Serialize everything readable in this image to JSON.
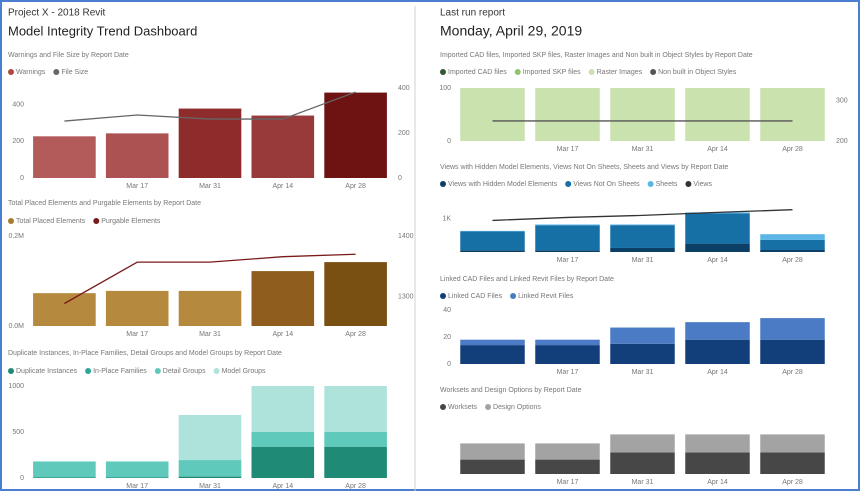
{
  "header": {
    "project": "Project X - 2018 Revit",
    "title": "Model Integrity Trend Dashboard",
    "last_run_label": "Last run report",
    "last_run_date": "Monday, April 29, 2019"
  },
  "chart_data": [
    {
      "type": "bar",
      "title": "Warnings and File Size by Report Date",
      "categories": [
        null,
        "Mar 17",
        "Mar 31",
        "Apr 14",
        "Apr 28"
      ],
      "series": [
        {
          "name": "Warnings",
          "color": "#b5433f",
          "colors": [
            "#b35a5a",
            "#ad5252",
            "#8e2b2b",
            "#983a3a",
            "#6e1212"
          ],
          "values": [
            227,
            243,
            378,
            340,
            465
          ]
        },
        {
          "name": "File Size",
          "color": "#666666",
          "type": "line",
          "axis": "y2",
          "values": [
            253,
            280,
            262,
            262,
            382
          ]
        }
      ],
      "ylim": [
        0,
        490
      ],
      "yticks": [
        0,
        200,
        400
      ],
      "y2lim": [
        0,
        400
      ],
      "y2ticks": [
        0,
        200,
        400
      ]
    },
    {
      "type": "bar",
      "title": "Total Placed Elements and Purgable Elements by Report Date",
      "categories": [
        null,
        "Mar 17",
        "Mar 31",
        "Apr 14",
        "Apr 28"
      ],
      "series": [
        {
          "name": "Total Placed Elements",
          "color": "#a67c2e",
          "colors": [
            "#b58a3e",
            "#b58a3e",
            "#b58a3e",
            "#8f5d1d",
            "#7a4f12"
          ],
          "values": [
            73000,
            78000,
            78000,
            122000,
            142000
          ]
        },
        {
          "name": "Purgable Elements",
          "color": "#7a1a1a",
          "type": "line",
          "axis": "y2",
          "values": [
            1289,
            1357,
            1357,
            1366,
            1370
          ]
        }
      ],
      "ylim": [
        0,
        200000
      ],
      "yticks": [
        {
          "value": 0,
          "label": "0.0M"
        },
        {
          "value": 200000,
          "label": "0.2M"
        }
      ],
      "y2lim": [
        1252,
        1400
      ],
      "y2ticks": [
        1300,
        1400
      ]
    },
    {
      "type": "bar",
      "stacked": true,
      "title": "Duplicate Instances, In-Place Families, Detail Groups and Model Groups by Report Date",
      "categories": [
        null,
        "Mar 17",
        "Mar 31",
        "Apr 14",
        "Apr 28"
      ],
      "series": [
        {
          "name": "Duplicate Instances",
          "color": "#1f8a76",
          "values": [
            5,
            5,
            15,
            340,
            340
          ]
        },
        {
          "name": "In-Place Families",
          "color": "#2aa897",
          "values": [
            5,
            5,
            5,
            0,
            0
          ]
        },
        {
          "name": "Detail Groups",
          "color": "#5fcabb",
          "values": [
            170,
            170,
            175,
            160,
            160
          ]
        },
        {
          "name": "Model Groups",
          "color": "#aee3db",
          "values": [
            0,
            0,
            490,
            500,
            500
          ]
        }
      ],
      "ylim": [
        0,
        1000
      ],
      "yticks": [
        0,
        500,
        1000
      ]
    },
    {
      "type": "bar",
      "stacked": true,
      "title": "Imported CAD files, Imported SKP files, Raster Images and Non built in Object Styles by Report Date",
      "categories": [
        null,
        "Mar 17",
        "Mar 31",
        "Apr 14",
        "Apr 28"
      ],
      "series": [
        {
          "name": "Imported CAD files",
          "color": "#2f5a2f",
          "values": [
            0,
            0,
            0,
            0,
            0
          ]
        },
        {
          "name": "Imported SKP files",
          "color": "#8fc46a",
          "values": [
            0,
            0,
            0,
            0,
            0
          ]
        },
        {
          "name": "Raster Images",
          "color": "#c9e2ae",
          "values": [
            100,
            100,
            100,
            100,
            100
          ]
        },
        {
          "name": "Non built in Object Styles",
          "color": "#555555",
          "type": "line",
          "axis": "y2",
          "values": [
            250,
            250,
            250,
            250,
            250
          ]
        }
      ],
      "ylim": [
        0,
        100
      ],
      "yticks": [
        0,
        100
      ],
      "y2lim": [
        200,
        332
      ],
      "y2ticks": [
        200,
        300
      ]
    },
    {
      "type": "bar",
      "stacked": true,
      "title": "Views with Hidden Model Elements, Views Not On Sheets, Sheets and Views by Report Date",
      "categories": [
        null,
        "Mar 17",
        "Mar 31",
        "Apr 14",
        "Apr 28"
      ],
      "series": [
        {
          "name": "Views with Hidden Model Elements",
          "color": "#0b3f66",
          "values": [
            50,
            50,
            120,
            250,
            60
          ]
        },
        {
          "name": "Views Not On Sheets",
          "color": "#1670a6",
          "values": [
            560,
            740,
            680,
            900,
            300
          ]
        },
        {
          "name": "Sheets",
          "color": "#5bb5e6",
          "values": [
            20,
            30,
            20,
            30,
            170
          ]
        },
        {
          "name": "Views",
          "color": "#333333",
          "type": "line",
          "values": [
            940,
            1030,
            1090,
            1180,
            1260
          ]
        }
      ],
      "ylim": [
        0,
        1400
      ],
      "yticks": [
        {
          "value": 1000,
          "label": "1K"
        }
      ]
    },
    {
      "type": "bar",
      "stacked": true,
      "title": "Linked CAD Files and Linked Revit Files by Report Date",
      "categories": [
        null,
        "Mar 17",
        "Mar 31",
        "Apr 14",
        "Apr 28"
      ],
      "series": [
        {
          "name": "Linked CAD Files",
          "color": "#123f7a",
          "values": [
            14,
            14,
            15,
            18,
            18
          ]
        },
        {
          "name": "Linked Revit Files",
          "color": "#4a7bc4",
          "values": [
            4,
            4,
            12,
            13,
            16
          ]
        }
      ],
      "ylim": [
        0,
        40
      ],
      "yticks": [
        0,
        20,
        40
      ]
    },
    {
      "type": "bar",
      "stacked": true,
      "title": "Worksets and Design Options by Report Date",
      "categories": [
        null,
        "Mar 17",
        "Mar 31",
        "Apr 14",
        "Apr 28"
      ],
      "series": [
        {
          "name": "Worksets",
          "color": "#474747",
          "values": [
            8,
            8,
            12,
            12,
            12
          ]
        },
        {
          "name": "Design Options",
          "color": "#a3a3a3",
          "values": [
            9,
            9,
            10,
            10,
            10
          ]
        }
      ],
      "ylim": [
        0,
        30
      ],
      "yticks": []
    }
  ]
}
